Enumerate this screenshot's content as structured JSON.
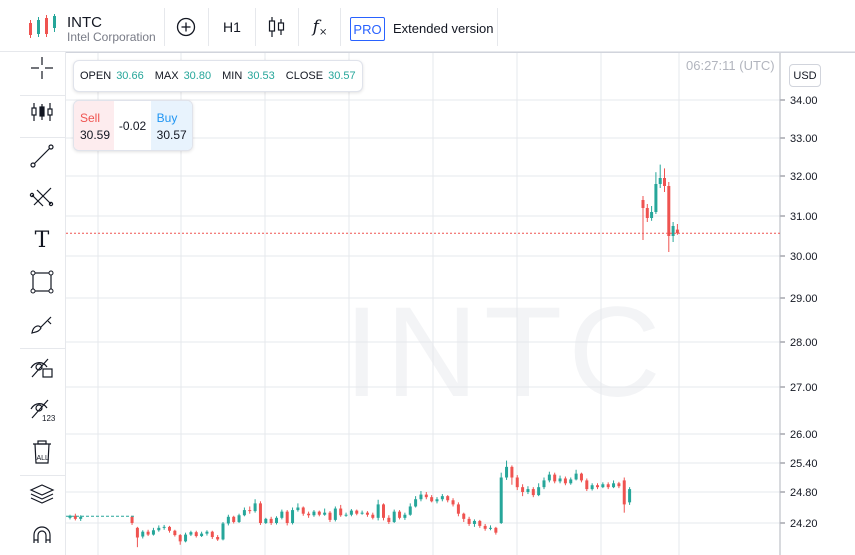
{
  "header": {
    "symbol": "INTC",
    "company": "Intel Corporation",
    "interval": "H1",
    "indicators_label": "f",
    "pro_badge": "PRO",
    "extended_label": "Extended version"
  },
  "left_toolbar": {
    "tools": [
      "crosshair-icon",
      "indicators-icon",
      "trend-line-icon",
      "fib-icon",
      "text-icon",
      "rectangle-icon",
      "brush-icon",
      "hide-drawings-icon",
      "hide-indicators-icon",
      "delete-all-icon",
      "layers-icon",
      "magnet-icon"
    ]
  },
  "ohlc": {
    "open_label": "OPEN",
    "open": "30.66",
    "max_label": "MAX",
    "max": "30.80",
    "min_label": "MIN",
    "min": "30.53",
    "close_label": "CLOSE",
    "close": "30.57"
  },
  "trade": {
    "sell_label": "Sell",
    "sell_price": "30.59",
    "spread": "-0.02",
    "buy_label": "Buy",
    "buy_price": "30.57"
  },
  "chart": {
    "time": "06:27:11 (UTC)",
    "currency": "USD",
    "watermark": "INTC",
    "current_price": 30.57,
    "colors": {
      "up": "#26a69a",
      "down": "#ef5350",
      "grid": "#e6e8ec",
      "price_line": "#ef5350"
    }
  },
  "chart_data": {
    "type": "candlestick",
    "y_ticks": [
      "34.00",
      "33.00",
      "32.00",
      "31.00",
      "30.00",
      "29.00",
      "28.00",
      "27.00",
      "26.00",
      "25.40",
      "24.80",
      "24.20"
    ],
    "y_tick_values": [
      34,
      33,
      32,
      31,
      30,
      29,
      28,
      27,
      26,
      25.4,
      24.8,
      24.2
    ],
    "candles": [
      [
        24.3,
        24.34,
        24.36,
        24.27
      ],
      [
        24.34,
        24.28,
        24.38,
        24.25
      ],
      [
        24.28,
        24.32,
        24.35,
        24.24
      ],
      [
        24.32,
        24.2,
        24.34,
        24.16
      ],
      [
        24.1,
        23.9,
        24.12,
        23.7
      ],
      [
        23.92,
        24.02,
        24.05,
        23.88
      ],
      [
        24.02,
        23.96,
        24.06,
        23.93
      ],
      [
        23.96,
        24.05,
        24.1,
        23.94
      ],
      [
        24.05,
        24.1,
        24.15,
        24.02
      ],
      [
        24.1,
        24.12,
        24.16,
        24.06
      ],
      [
        24.12,
        24.04,
        24.14,
        24.0
      ],
      [
        24.04,
        23.95,
        24.06,
        23.92
      ],
      [
        23.95,
        23.82,
        23.97,
        23.75
      ],
      [
        23.82,
        23.96,
        24.0,
        23.8
      ],
      [
        23.96,
        24.01,
        24.04,
        23.93
      ],
      [
        24.01,
        23.93,
        24.04,
        23.9
      ],
      [
        23.93,
        23.98,
        24.02,
        23.91
      ],
      [
        23.98,
        24.02,
        24.05,
        23.94
      ],
      [
        24.02,
        23.91,
        24.04,
        23.87
      ],
      [
        23.91,
        23.86,
        23.95,
        23.83
      ],
      [
        23.86,
        24.19,
        24.22,
        23.84
      ],
      [
        24.19,
        24.32,
        24.36,
        24.15
      ],
      [
        24.32,
        24.22,
        24.34,
        24.19
      ],
      [
        24.22,
        24.35,
        24.38,
        24.2
      ],
      [
        24.35,
        24.45,
        24.5,
        24.33
      ],
      [
        24.45,
        24.43,
        24.52,
        24.38
      ],
      [
        24.43,
        24.58,
        24.66,
        24.4
      ],
      [
        24.58,
        24.2,
        24.62,
        24.16
      ],
      [
        24.2,
        24.28,
        24.3,
        24.18
      ],
      [
        24.28,
        24.2,
        24.32,
        24.16
      ],
      [
        24.2,
        24.3,
        24.33,
        24.17
      ],
      [
        24.3,
        24.42,
        24.46,
        24.27
      ],
      [
        24.42,
        24.2,
        24.45,
        24.15
      ],
      [
        24.2,
        24.45,
        24.5,
        24.17
      ],
      [
        24.45,
        24.5,
        24.58,
        24.42
      ],
      [
        24.5,
        24.38,
        24.52,
        24.34
      ],
      [
        24.38,
        24.35,
        24.42,
        24.3
      ],
      [
        24.35,
        24.42,
        24.45,
        24.32
      ],
      [
        24.42,
        24.36,
        24.44,
        24.33
      ],
      [
        24.36,
        24.4,
        24.48,
        24.34
      ],
      [
        24.4,
        24.26,
        24.43,
        24.22
      ],
      [
        24.26,
        24.48,
        24.52,
        24.23
      ],
      [
        24.48,
        24.35,
        24.55,
        24.32
      ],
      [
        24.35,
        24.36,
        24.4,
        24.32
      ],
      [
        24.36,
        24.44,
        24.47,
        24.33
      ],
      [
        24.44,
        24.38,
        24.46,
        24.35
      ],
      [
        24.38,
        24.4,
        24.44,
        24.36
      ],
      [
        24.4,
        24.36,
        24.43,
        24.32
      ],
      [
        24.36,
        24.3,
        24.4,
        24.27
      ],
      [
        24.3,
        24.56,
        24.65,
        24.25
      ],
      [
        24.56,
        24.3,
        24.58,
        24.25
      ],
      [
        24.3,
        24.22,
        24.35,
        24.18
      ],
      [
        24.22,
        24.42,
        24.46,
        24.2
      ],
      [
        24.42,
        24.3,
        24.45,
        24.27
      ],
      [
        24.3,
        24.36,
        24.4,
        24.26
      ],
      [
        24.36,
        24.52,
        24.58,
        24.34
      ],
      [
        24.52,
        24.66,
        24.72,
        24.5
      ],
      [
        24.66,
        24.75,
        24.82,
        24.62
      ],
      [
        24.75,
        24.7,
        24.8,
        24.66
      ],
      [
        24.7,
        24.62,
        24.74,
        24.6
      ],
      [
        24.62,
        24.66,
        24.7,
        24.58
      ],
      [
        24.66,
        24.72,
        24.76,
        24.62
      ],
      [
        24.72,
        24.64,
        24.74,
        24.6
      ],
      [
        24.64,
        24.56,
        24.68,
        24.52
      ],
      [
        24.56,
        24.38,
        24.6,
        24.33
      ],
      [
        24.38,
        24.28,
        24.4,
        24.22
      ],
      [
        24.28,
        24.18,
        24.32,
        24.14
      ],
      [
        24.18,
        24.24,
        24.27,
        24.12
      ],
      [
        24.24,
        24.14,
        24.26,
        24.1
      ],
      [
        24.14,
        24.08,
        24.18,
        24.04
      ],
      [
        24.08,
        24.1,
        24.15,
        24.05
      ],
      [
        24.1,
        24.0,
        24.12,
        23.96
      ],
      [
        24.2,
        25.1,
        25.2,
        24.18
      ],
      [
        25.1,
        25.32,
        25.45,
        25.05
      ],
      [
        25.32,
        25.1,
        25.35,
        24.95
      ],
      [
        25.1,
        24.9,
        25.15,
        24.84
      ],
      [
        24.9,
        24.8,
        24.96,
        24.72
      ],
      [
        24.8,
        24.86,
        24.92,
        24.76
      ],
      [
        24.86,
        24.74,
        24.9,
        24.7
      ],
      [
        24.74,
        24.9,
        24.98,
        24.72
      ],
      [
        24.9,
        25.04,
        25.1,
        24.86
      ],
      [
        25.04,
        25.16,
        25.22,
        25.0
      ],
      [
        25.16,
        25.02,
        25.2,
        24.98
      ],
      [
        25.02,
        25.08,
        25.14,
        24.98
      ],
      [
        25.08,
        24.98,
        25.12,
        24.94
      ],
      [
        24.98,
        25.06,
        25.1,
        24.95
      ],
      [
        25.06,
        25.18,
        25.26,
        25.04
      ],
      [
        25.18,
        25.04,
        25.2,
        25.0
      ],
      [
        25.04,
        24.86,
        25.08,
        24.82
      ],
      [
        24.86,
        24.94,
        24.98,
        24.83
      ],
      [
        24.94,
        24.9,
        24.98,
        24.86
      ],
      [
        24.9,
        24.96,
        25.0,
        24.88
      ],
      [
        24.96,
        24.9,
        25.0,
        24.86
      ],
      [
        24.9,
        24.98,
        25.04,
        24.88
      ],
      [
        24.98,
        24.92,
        25.01,
        24.88
      ],
      [
        25.04,
        24.56,
        25.1,
        24.4
      ],
      [
        24.6,
        24.86,
        24.9,
        24.55
      ],
      [
        31.4,
        31.2,
        31.5,
        30.4
      ],
      [
        31.2,
        30.95,
        31.3,
        30.85
      ],
      [
        30.95,
        31.1,
        31.25,
        30.88
      ],
      [
        31.1,
        31.8,
        32.1,
        31.05
      ],
      [
        31.8,
        31.95,
        32.3,
        31.7
      ],
      [
        31.95,
        31.75,
        32.2,
        31.6
      ],
      [
        31.75,
        30.5,
        31.85,
        30.1
      ],
      [
        30.5,
        30.75,
        30.85,
        30.35
      ],
      [
        30.66,
        30.57,
        30.8,
        30.53
      ]
    ],
    "candle_order": "open, close, high, low",
    "current_price": 30.57
  }
}
